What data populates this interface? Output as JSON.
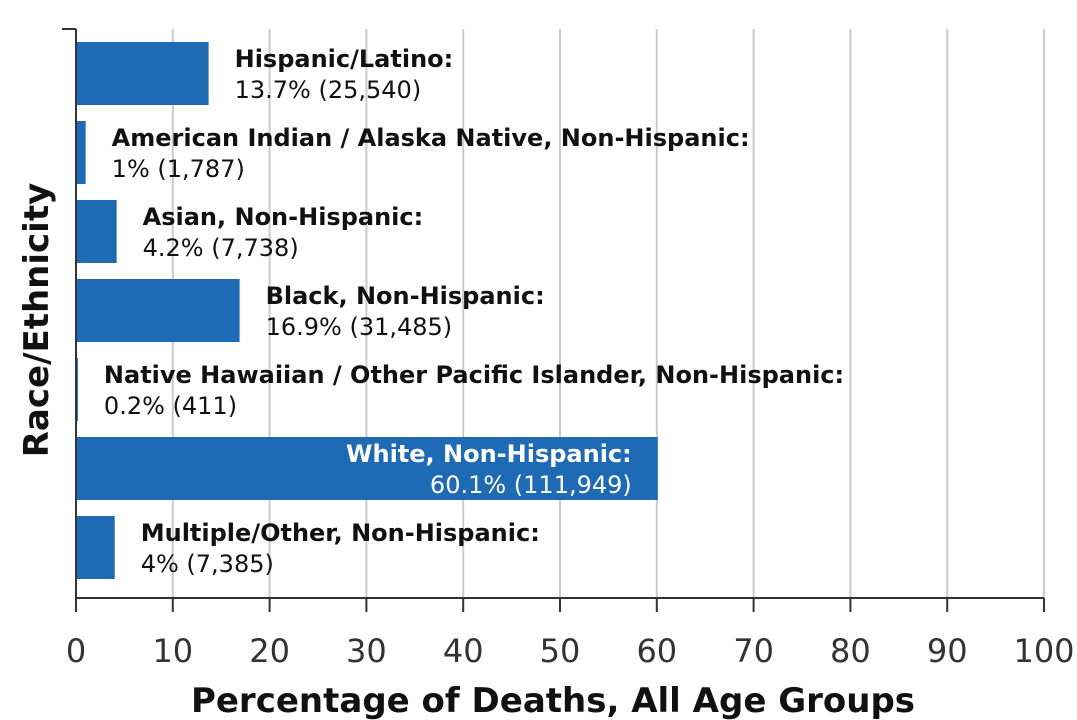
{
  "chart_data": {
    "type": "bar",
    "orientation": "horizontal",
    "xlabel": "Percentage of Deaths, All Age Groups",
    "ylabel": "Race/Ethnicity",
    "xlim": [
      0,
      100
    ],
    "xticks": [
      0,
      10,
      20,
      30,
      40,
      50,
      60,
      70,
      80,
      90,
      100
    ],
    "grid": "vertical",
    "colors": {
      "bar": "#1f6ab5",
      "grid": "#cccccc",
      "axis": "#333333"
    },
    "categories": [
      "Hispanic/Latino:",
      "American Indian / Alaska Native, Non-Hispanic:",
      "Asian, Non-Hispanic:",
      "Black, Non-Hispanic:",
      "Native Hawaiian / Other Pacific Islander, Non-Hispanic:",
      "White, Non-Hispanic:",
      "Multiple/Other, Non-Hispanic:"
    ],
    "values": [
      13.7,
      1,
      4.2,
      16.9,
      0.2,
      60.1,
      4
    ],
    "data_labels": [
      "13.7% (25,540)",
      "1% (1,787)",
      "4.2% (7,738)",
      "16.9% (31,485)",
      "0.2% (411)",
      "60.1% (111,949)",
      "4% (7,385)"
    ]
  }
}
